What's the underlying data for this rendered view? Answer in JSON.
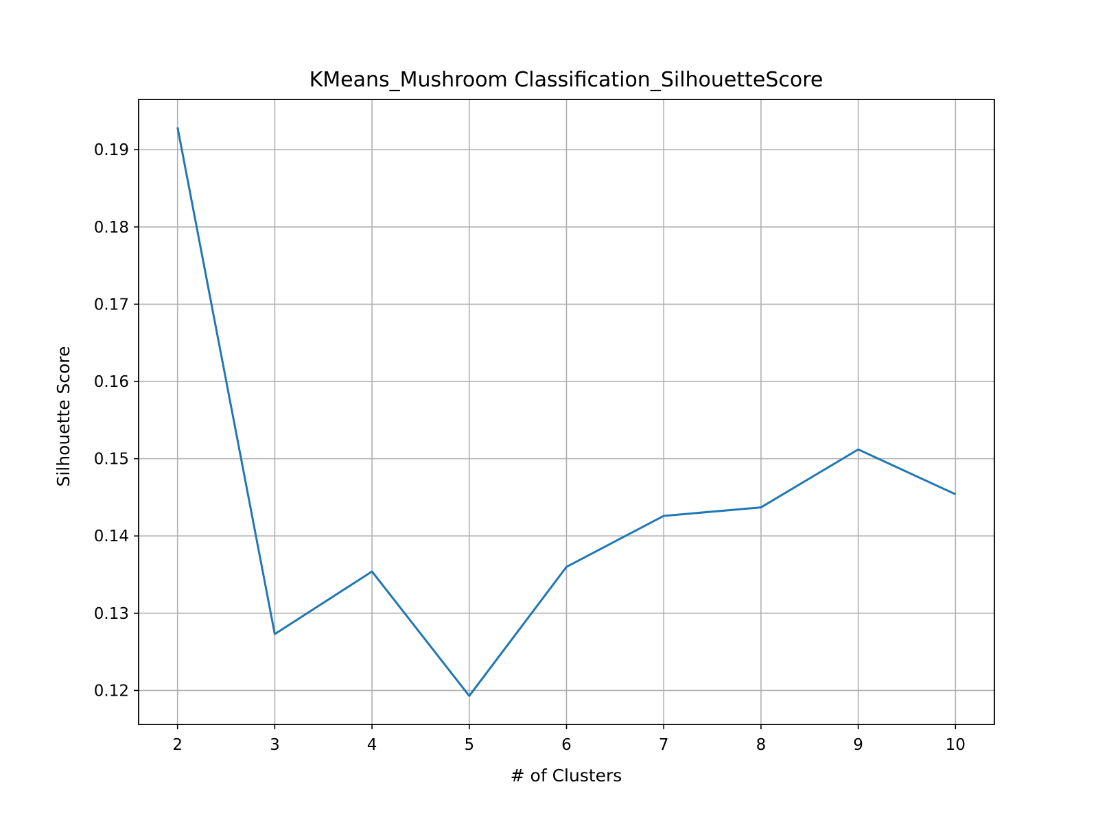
{
  "chart_data": {
    "type": "line",
    "title": "KMeans_Mushroom Classification_SilhouetteScore",
    "xlabel": "# of Clusters",
    "ylabel": "Silhouette Score",
    "x": [
      2,
      3,
      4,
      5,
      6,
      7,
      8,
      9,
      10
    ],
    "series": [
      {
        "values": [
          0.1929,
          0.1273,
          0.1354,
          0.1193,
          0.136,
          0.1426,
          0.1437,
          0.1512,
          0.1454
        ],
        "color": "#1f77b4"
      }
    ],
    "xlim": [
      1.6,
      10.4
    ],
    "ylim": [
      0.1156,
      0.1965
    ],
    "xticks": [
      2,
      3,
      4,
      5,
      6,
      7,
      8,
      9,
      10
    ],
    "xtick_labels": [
      "2",
      "3",
      "4",
      "5",
      "6",
      "7",
      "8",
      "9",
      "10"
    ],
    "yticks": [
      0.12,
      0.13,
      0.14,
      0.15,
      0.16,
      0.17,
      0.18,
      0.19
    ],
    "ytick_labels": [
      "0.12",
      "0.13",
      "0.14",
      "0.15",
      "0.16",
      "0.17",
      "0.18",
      "0.19"
    ],
    "grid": true,
    "legend": null
  }
}
